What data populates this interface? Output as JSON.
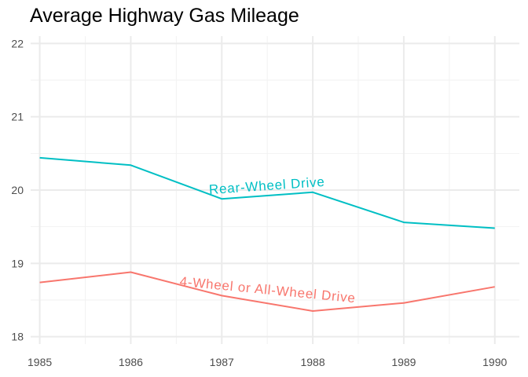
{
  "chart_data": {
    "type": "line",
    "title": "Average Highway Gas Mileage",
    "xlabel": "",
    "ylabel": "",
    "x": [
      1985,
      1986,
      1987,
      1988,
      1989,
      1990
    ],
    "xticks": [
      "1985",
      "1986",
      "1987",
      "1988",
      "1989",
      "1990"
    ],
    "yticks": [
      "18",
      "19",
      "20",
      "21",
      "22"
    ],
    "ytick_values": [
      18,
      19,
      20,
      21,
      22
    ],
    "xlim": [
      1984.9,
      1990.27
    ],
    "ylim": [
      17.9,
      22.1
    ],
    "grid": true,
    "legend": "none (direct labels on lines)",
    "series": [
      {
        "name": "Rear-Wheel Drive",
        "color": "#00BFC4",
        "values": [
          20.44,
          20.34,
          19.88,
          19.97,
          19.56,
          19.48
        ],
        "label_position": [
          1987.5,
          20.0
        ],
        "label_angle": -4
      },
      {
        "name": "4-Wheel or All-Wheel Drive",
        "color": "#F8766D",
        "values": [
          18.74,
          18.88,
          18.56,
          18.35,
          18.46,
          18.68
        ],
        "label_position": [
          1987.5,
          18.58
        ],
        "label_angle": 5.5
      }
    ]
  }
}
